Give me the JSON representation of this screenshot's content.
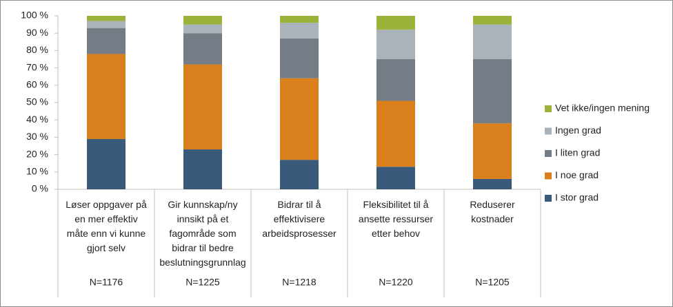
{
  "chart_data": {
    "type": "stacked-bar",
    "categories": [
      [
        "Løser oppgaver på",
        "en mer effektiv",
        "måte enn vi kunne",
        "gjort selv"
      ],
      [
        "Gir kunnskap/ny",
        "innsikt på et",
        "fagområde som",
        "bidrar til bedre",
        "beslutningsgrunnlag"
      ],
      [
        "Bidrar til å",
        "effektivisere",
        "arbeidsprosesser"
      ],
      [
        "Fleksibilitet til å",
        "ansette ressurser",
        "etter behov"
      ],
      [
        "Reduserer",
        "kostnader"
      ]
    ],
    "n_labels": [
      "N=1176",
      "N=1225",
      "N=1218",
      "N=1220",
      "N=1205"
    ],
    "series": [
      {
        "name": "I stor grad",
        "color": "#395a7a",
        "values": [
          29,
          23,
          17,
          13,
          6
        ]
      },
      {
        "name": "I noe grad",
        "color": "#d97f1c",
        "values": [
          49,
          49,
          47,
          38,
          32
        ]
      },
      {
        "name": "I liten grad",
        "color": "#747d86",
        "values": [
          15,
          18,
          23,
          24,
          37
        ]
      },
      {
        "name": "Ingen grad",
        "color": "#aab2ba",
        "values": [
          4,
          5,
          9,
          17,
          20
        ]
      },
      {
        "name": "Vet ikke/ingen mening",
        "color": "#9bb33a",
        "values": [
          3,
          5,
          4,
          8,
          5
        ]
      }
    ],
    "ylim": [
      0,
      100
    ],
    "yticks": [
      {
        "value": 0,
        "label": "0 %"
      },
      {
        "value": 10,
        "label": "10 %"
      },
      {
        "value": 20,
        "label": "20 %"
      },
      {
        "value": 30,
        "label": "30 %"
      },
      {
        "value": 40,
        "label": "40 %"
      },
      {
        "value": 50,
        "label": "50 %"
      },
      {
        "value": 60,
        "label": "60 %"
      },
      {
        "value": 70,
        "label": "70 %"
      },
      {
        "value": 80,
        "label": "80 %"
      },
      {
        "value": 90,
        "label": "90 %"
      },
      {
        "value": 100,
        "label": "100 %"
      }
    ],
    "legend": "right"
  }
}
